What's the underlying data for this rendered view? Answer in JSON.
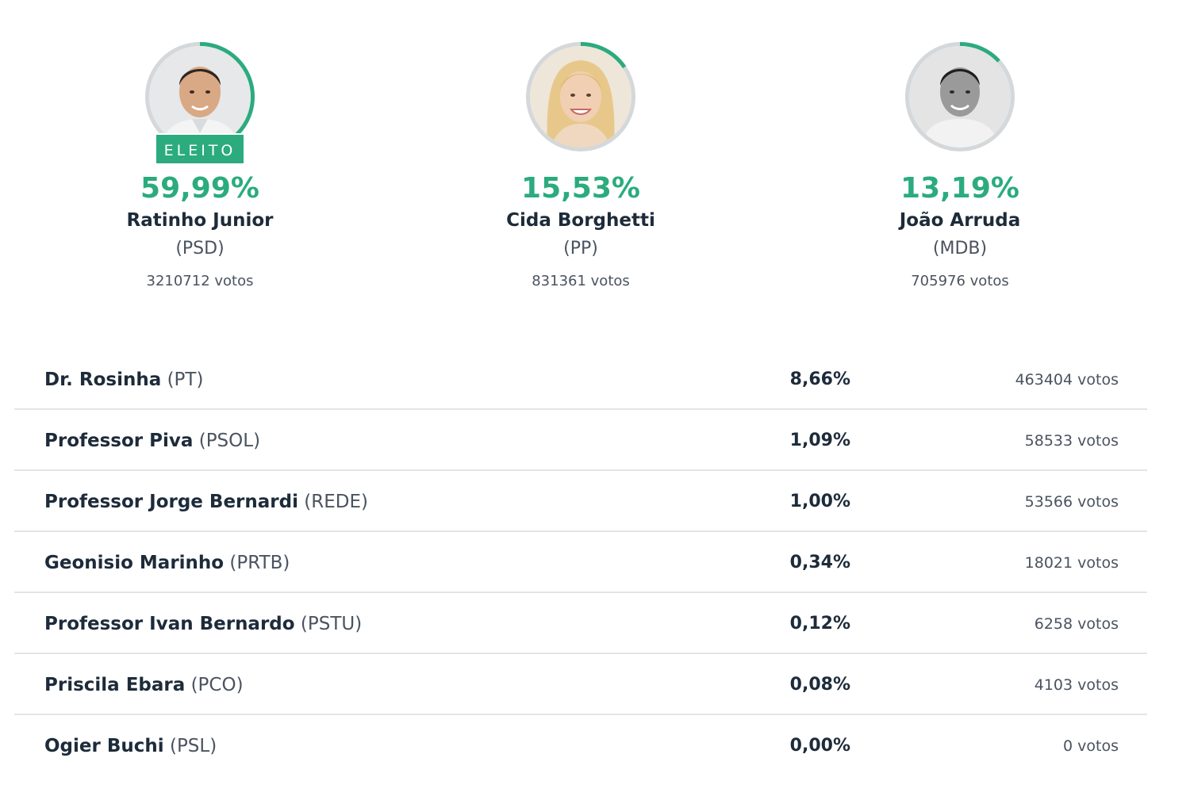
{
  "colors": {
    "accent": "#2bab7e",
    "ring_gray": "#d4d8db",
    "text_dark": "#1d2b3a",
    "text_muted": "#4a5360",
    "divider": "#e2e5e8"
  },
  "top_candidates": [
    {
      "percent": "59,99%",
      "percent_value": 59.99,
      "name": "Ratinho Junior",
      "party": "(PSD)",
      "votes": "3210712 votos",
      "elected": true,
      "elected_label": "ELEITO",
      "icon": "candidate-photo-icon"
    },
    {
      "percent": "15,53%",
      "percent_value": 15.53,
      "name": "Cida Borghetti",
      "party": "(PP)",
      "votes": "831361 votos",
      "elected": false,
      "icon": "candidate-photo-icon"
    },
    {
      "percent": "13,19%",
      "percent_value": 13.19,
      "name": "João Arruda",
      "party": "(MDB)",
      "votes": "705976 votos",
      "elected": false,
      "icon": "candidate-photo-icon"
    }
  ],
  "other_candidates": [
    {
      "name": "Dr. Rosinha",
      "party": "(PT)",
      "percent": "8,66%",
      "votes": "463404 votos"
    },
    {
      "name": "Professor Piva",
      "party": "(PSOL)",
      "percent": "1,09%",
      "votes": "58533 votos"
    },
    {
      "name": "Professor Jorge Bernardi",
      "party": "(REDE)",
      "percent": "1,00%",
      "votes": "53566 votos"
    },
    {
      "name": "Geonisio Marinho",
      "party": "(PRTB)",
      "percent": "0,34%",
      "votes": "18021 votos"
    },
    {
      "name": "Professor Ivan Bernardo",
      "party": "(PSTU)",
      "percent": "0,12%",
      "votes": "6258 votos"
    },
    {
      "name": "Priscila Ebara",
      "party": "(PCO)",
      "percent": "0,08%",
      "votes": "4103 votos"
    },
    {
      "name": "Ogier Buchi",
      "party": "(PSL)",
      "percent": "0,00%",
      "votes": "0 votos"
    }
  ]
}
